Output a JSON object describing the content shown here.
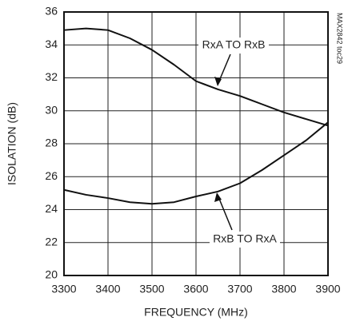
{
  "chart_data": {
    "type": "line",
    "x_label": "FREQUENCY (MHz)",
    "y_label": "ISOLATION (dB)",
    "x": [
      3300,
      3350,
      3400,
      3450,
      3500,
      3550,
      3600,
      3650,
      3700,
      3750,
      3800,
      3850,
      3900
    ],
    "series": [
      {
        "name": "RxA TO RxB",
        "color": "#111111",
        "values": [
          34.9,
          35.0,
          34.9,
          34.4,
          33.7,
          32.8,
          31.8,
          31.3,
          30.9,
          30.4,
          29.9,
          29.5,
          29.1
        ]
      },
      {
        "name": "RxB TO RxA",
        "color": "#111111",
        "values": [
          25.2,
          24.9,
          24.7,
          24.45,
          24.35,
          24.45,
          24.8,
          25.1,
          25.6,
          26.4,
          27.3,
          28.2,
          29.3
        ]
      }
    ],
    "xlim": [
      3300,
      3900
    ],
    "xticks": [
      3300,
      3400,
      3500,
      3600,
      3700,
      3800,
      3900
    ],
    "ylim": [
      20,
      36
    ],
    "yticks": [
      20,
      22,
      24,
      26,
      28,
      30,
      32,
      34,
      36
    ],
    "grid": true,
    "code_label": "MAX2842 toc29"
  }
}
